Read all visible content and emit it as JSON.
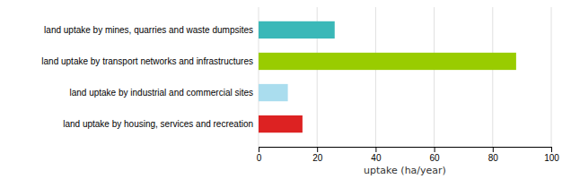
{
  "chart_data": {
    "type": "bar",
    "orientation": "horizontal",
    "categories": [
      "land uptake by mines, quarries and waste dumpsites",
      "land uptake by transport networks and infrastructures",
      "land uptake by industrial and commercial sites",
      "land uptake by housing, services and recreation"
    ],
    "values": [
      26,
      88,
      10,
      15
    ],
    "colors": [
      "#3ab8b8",
      "#99cc00",
      "#aaddee",
      "#dd2222"
    ],
    "xlabel": "uptake (ha/year)",
    "xlim": [
      0,
      100
    ],
    "xticks": [
      0,
      20,
      40,
      60,
      80,
      100
    ],
    "grid": true
  }
}
